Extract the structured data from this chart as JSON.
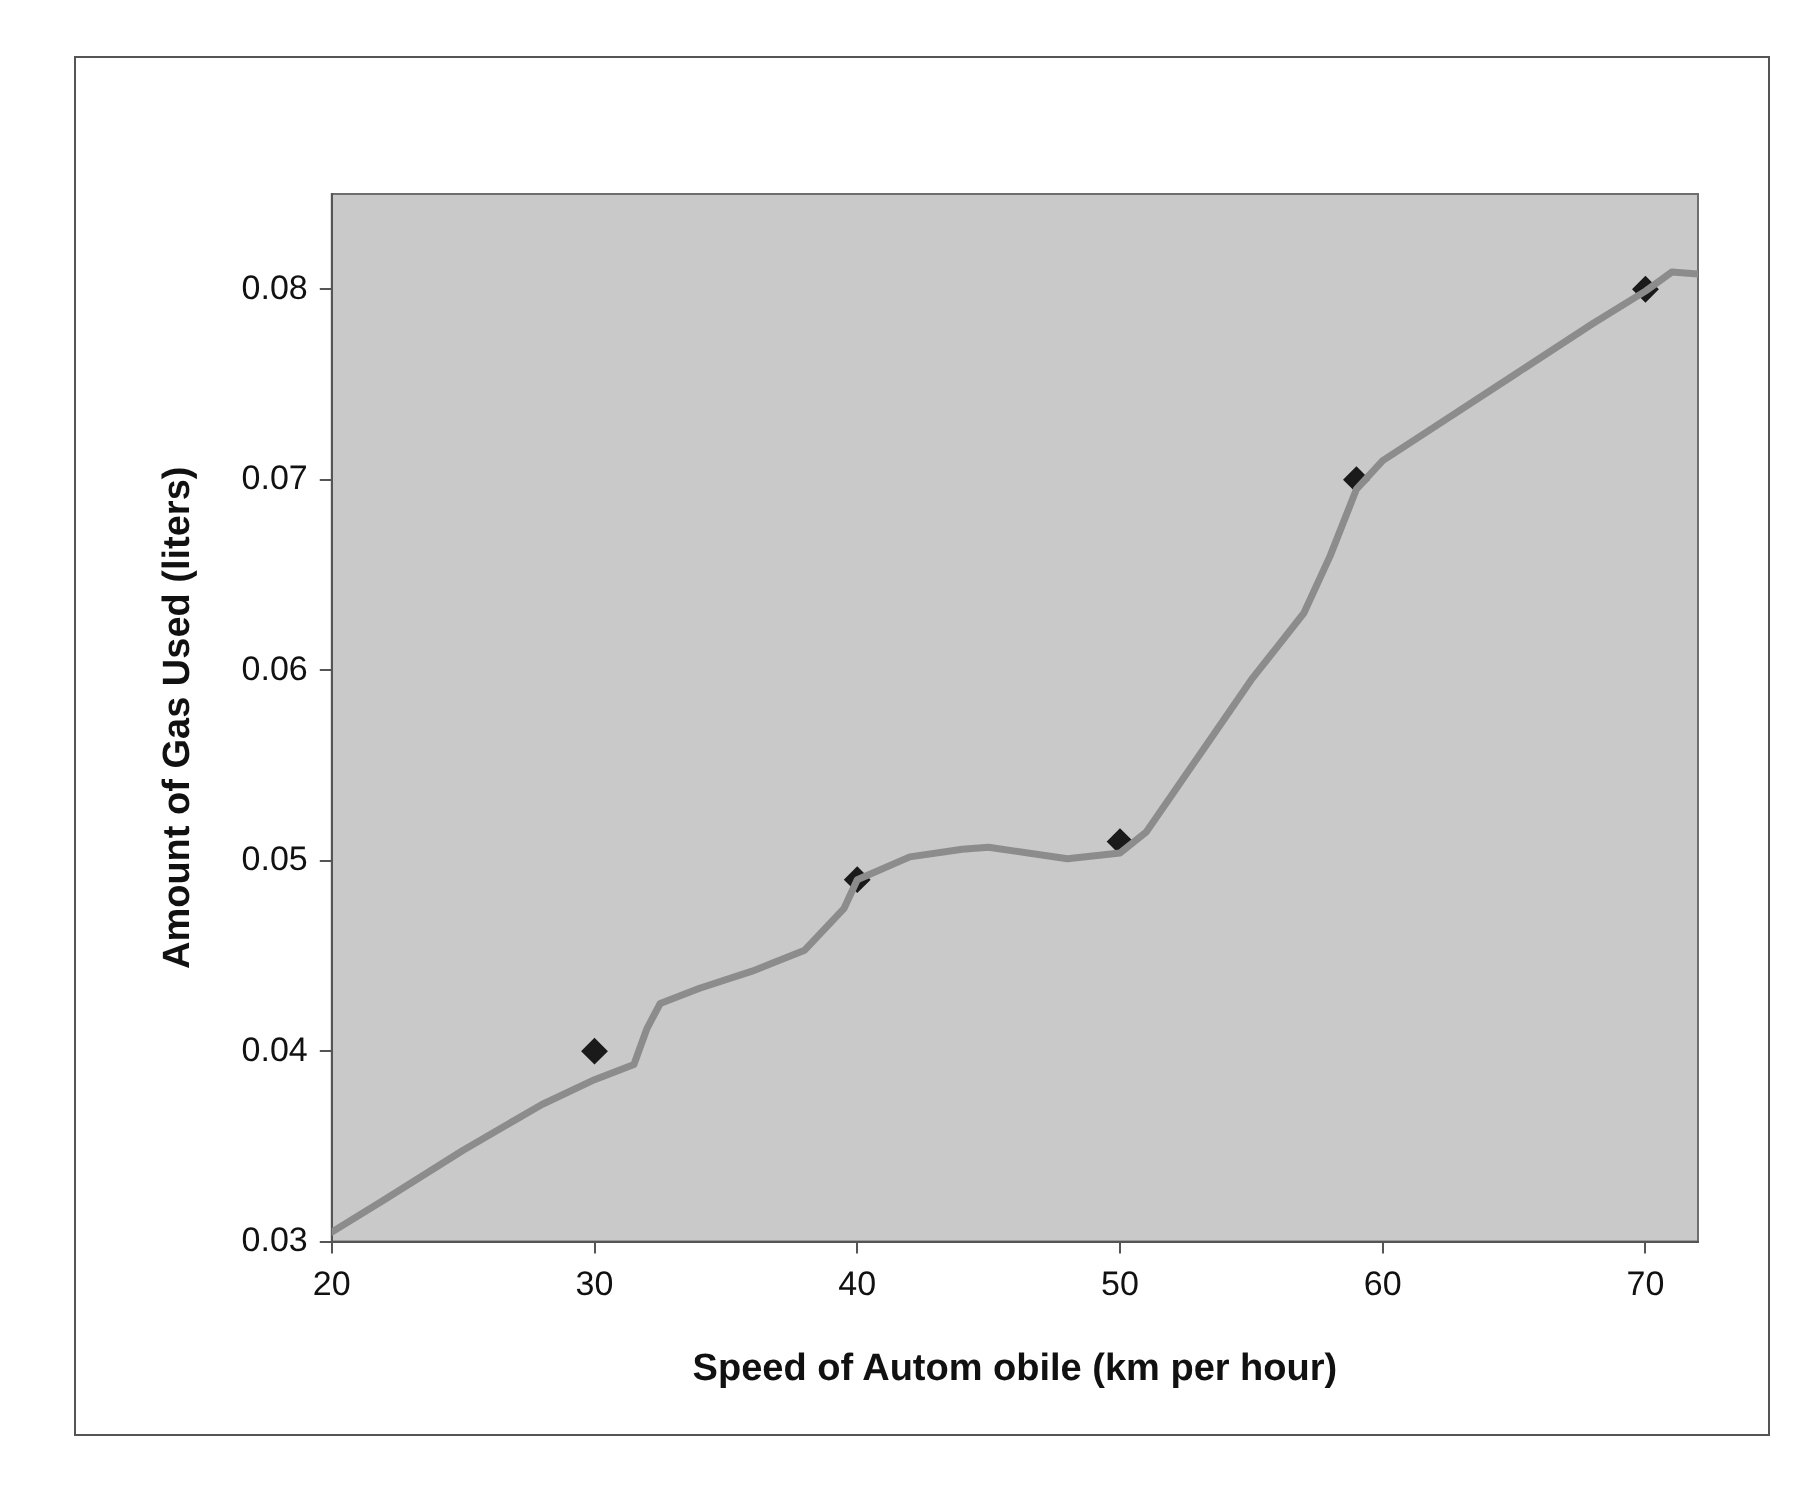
{
  "chart_data": {
    "type": "scatter",
    "xlabel": "Speed of Autom obile (km per hour)",
    "ylabel": "Amount of Gas Used (liters)",
    "xlim": [
      20,
      72
    ],
    "xticks": [
      20,
      30,
      40,
      50,
      60,
      70
    ],
    "ylim": [
      0.03,
      0.085
    ],
    "yticks": [
      0.03,
      0.04,
      0.05,
      0.06,
      0.07,
      0.08
    ],
    "grid": false,
    "marker": "diamond",
    "series": [
      {
        "type": "line",
        "color": "#8c8c8c",
        "marker": "none",
        "x": [
          20,
          22,
          25,
          28,
          30,
          31.5,
          32,
          32.5,
          34,
          36,
          38,
          39.5,
          40,
          42,
          44,
          45,
          46,
          48,
          50,
          51,
          52,
          53,
          55,
          57,
          58,
          59,
          60,
          62,
          65,
          68,
          70,
          71,
          72
        ],
        "values": [
          0.0305,
          0.0322,
          0.0348,
          0.0372,
          0.0385,
          0.0393,
          0.0412,
          0.0425,
          0.0433,
          0.0442,
          0.0453,
          0.0475,
          0.049,
          0.0502,
          0.0506,
          0.0507,
          0.0505,
          0.0501,
          0.0504,
          0.0515,
          0.0535,
          0.0555,
          0.0595,
          0.063,
          0.066,
          0.0695,
          0.071,
          0.0728,
          0.0755,
          0.0782,
          0.0799,
          0.0809,
          0.0808
        ]
      },
      {
        "color": "#1a1a1a",
        "x": [
          30,
          40,
          50,
          59,
          70
        ],
        "values": [
          0.04,
          0.049,
          0.051,
          0.07,
          0.08
        ]
      }
    ]
  }
}
